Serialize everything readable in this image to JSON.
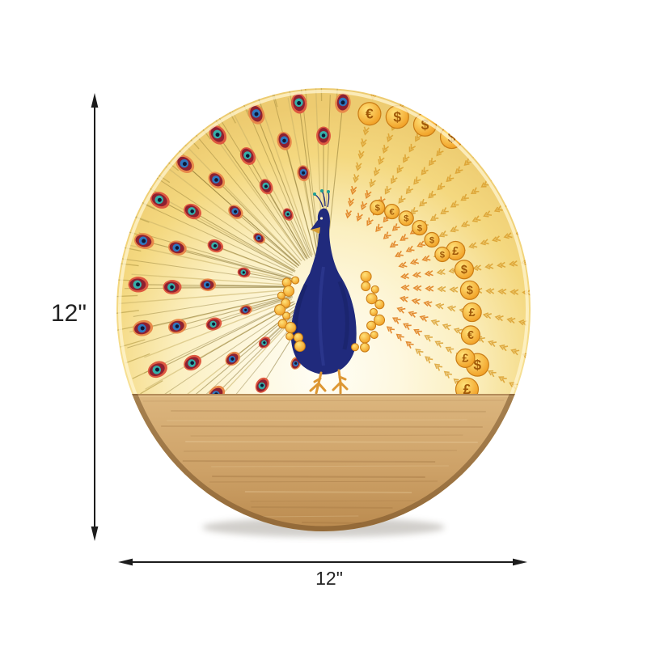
{
  "product_diagram": {
    "name": "peacock-led-wall-lamp-dimension-diagram",
    "dimension_height": {
      "label": "12\""
    },
    "dimension_width": {
      "label": "12\""
    },
    "artwork": {
      "coin_symbols": [
        "$",
        "£",
        "$",
        "€",
        "$",
        "£",
        "$",
        "$",
        "€",
        "$",
        "£",
        "$",
        "$",
        "€",
        "$",
        "$",
        "£",
        "$"
      ],
      "colors": {
        "glow_center": "#FFFEF6",
        "glow_soft": "#FEF8E0",
        "glow_mid": "#FBEFC0",
        "glow_edge": "#F4D87F",
        "glow_rim": "#EDCB70",
        "rim_highlight": "#FFF6D2",
        "wood_light": "#DCB67E",
        "wood_mid": "#CDA167",
        "wood_dark": "#B9894D",
        "wood_grain": "#8A5E2F",
        "wood_edge_shadow": "#6E4A22",
        "peacock_body": "#202A7C",
        "peacock_dark": "#121A54",
        "peacock_sheen": "#3A47A3",
        "crest_teal": "#1F9E94",
        "beak_gold": "#D9A036",
        "leg_color": "#DD9733",
        "ray_color": "#D89B28",
        "ray_deep": "#E0801F",
        "coin_light": "#FFE27A",
        "coin_deep": "#F09B1F",
        "coin_stroke": "#C97C15",
        "coin_symbol": "#A05808",
        "feather_straw": "#C9B268",
        "feather_dark": "#84702C",
        "fringe": "#B29A45",
        "eye_outer_a": "#E8894A",
        "eye_outer_b": "#DE5940",
        "eye_ring": "#8E2030",
        "eye_iris_a": "#2F77C0",
        "eye_iris_b": "#36AFA9",
        "eye_pupil": "#101736",
        "arrow_color": "#1C1C1C",
        "label_color": "#222222",
        "drop_shadow": "#9A948C"
      }
    }
  }
}
